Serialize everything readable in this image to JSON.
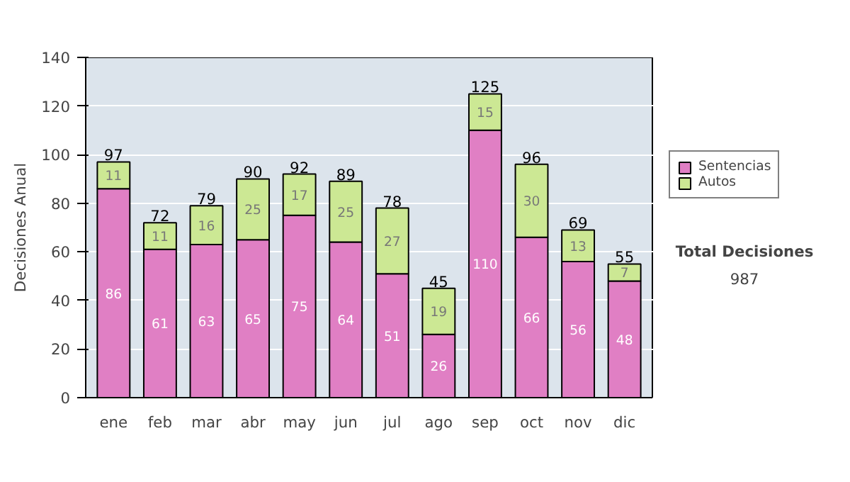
{
  "chart_data": {
    "type": "bar",
    "stacked": true,
    "ylabel": "Decisiones Anual",
    "categories": [
      "ene",
      "feb",
      "mar",
      "abr",
      "may",
      "jun",
      "jul",
      "ago",
      "sep",
      "oct",
      "nov",
      "dic"
    ],
    "series": [
      {
        "name": "Sentencias",
        "color": "#e07fc4",
        "values": [
          86,
          61,
          63,
          65,
          75,
          64,
          51,
          26,
          110,
          66,
          56,
          48
        ]
      },
      {
        "name": "Autos",
        "color": "#cce894",
        "values": [
          11,
          11,
          16,
          25,
          17,
          25,
          27,
          19,
          15,
          30,
          13,
          7
        ]
      }
    ],
    "totals": [
      "97",
      "72",
      "79",
      "90",
      "92",
      "89",
      "78",
      "45",
      "125",
      "96",
      "69",
      "55"
    ],
    "data_labels": true,
    "ylim": [
      0,
      140
    ],
    "yticks": [
      0,
      20,
      40,
      60,
      80,
      100,
      120,
      140
    ],
    "grid": "y",
    "legend": "right",
    "annotations": [
      "Total Decisiones",
      "987"
    ]
  }
}
